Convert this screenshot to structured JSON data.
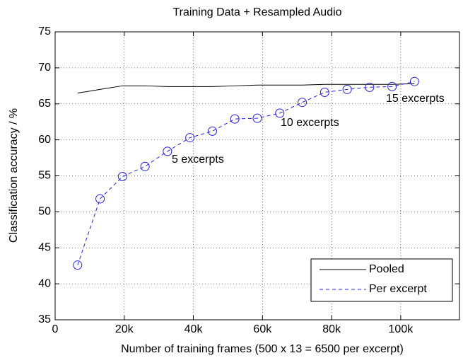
{
  "chart_data": {
    "type": "line",
    "title": "Training Data + Resampled Audio",
    "xlabel": "Number of training frames (500 x 13 = 6500 per excerpt)",
    "ylabel": "Classification accuracy / %",
    "x": [
      6500,
      13000,
      19500,
      26000,
      32500,
      39000,
      45500,
      52000,
      58500,
      65000,
      71500,
      78000,
      84500,
      91000,
      97500,
      104000
    ],
    "series": [
      {
        "name": "Pooled",
        "color": "#000000",
        "dash": false,
        "marker": false,
        "values": [
          66.5,
          67.0,
          67.5,
          67.5,
          67.4,
          67.4,
          67.4,
          67.5,
          67.6,
          67.6,
          67.6,
          67.7,
          67.7,
          67.7,
          67.7,
          67.8
        ]
      },
      {
        "name": "Per excerpt",
        "color": "#2222dd",
        "dash": true,
        "marker": true,
        "values": [
          42.6,
          51.8,
          54.9,
          56.3,
          58.4,
          60.3,
          61.2,
          62.9,
          63.0,
          63.7,
          65.2,
          66.6,
          67.0,
          67.3,
          67.4,
          68.1
        ]
      }
    ],
    "annotations": [
      "5 excerpts",
      "10 excerpts",
      "15 excerpts"
    ],
    "xlim": [
      0,
      117000
    ],
    "xticks": [
      0,
      {
        "value": 20000,
        "label": "20k"
      },
      {
        "value": 40000,
        "label": "40k"
      },
      {
        "value": 60000,
        "label": "60k"
      },
      {
        "value": 80000,
        "label": "80k"
      },
      {
        "value": 100000,
        "label": "100k"
      }
    ],
    "ylim": [
      35,
      75
    ],
    "yticks": [
      35,
      40,
      45,
      50,
      55,
      60,
      65,
      70,
      75
    ],
    "grid": true,
    "legend": "lower right"
  }
}
